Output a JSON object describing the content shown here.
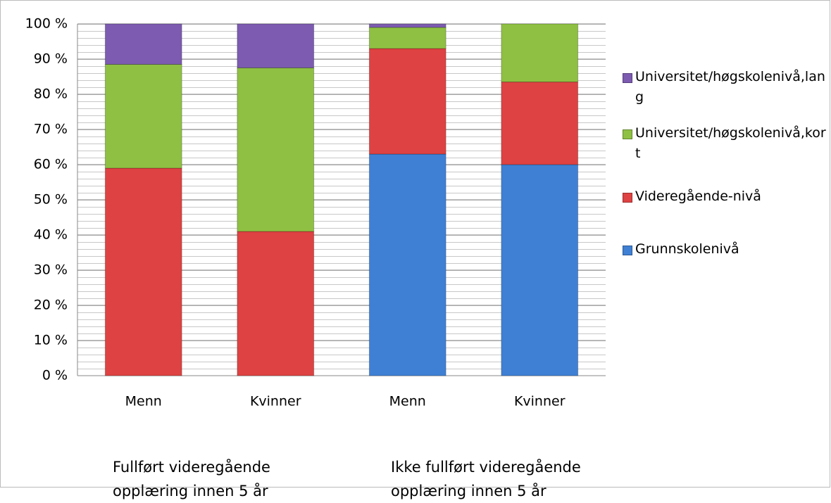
{
  "chart_data": {
    "type": "stacked_bar",
    "categories": [
      "Menn",
      "Kvinner",
      "Menn",
      "Kvinner"
    ],
    "groups": [
      "Fullført videregående opplæring innen 5 år",
      "Ikke fullført videregående opplæring innen 5 år"
    ],
    "series": [
      {
        "name": "Grunnskolenivå",
        "color": "#3f80d4",
        "values": [
          0,
          0,
          63,
          60
        ]
      },
      {
        "name": "Videregående-nivå",
        "color": "#de4242",
        "values": [
          59,
          41,
          30,
          23.5
        ]
      },
      {
        "name": "Universitet/høgskolenivå,kort",
        "color": "#8fc043",
        "values": [
          29.5,
          46.5,
          6,
          16.5
        ]
      },
      {
        "name": "Universitet/høgskolenivå,lang",
        "color": "#7c5bb0",
        "values": [
          11.5,
          12.5,
          1,
          0
        ]
      }
    ],
    "ylim": [
      0,
      100
    ],
    "yticks": [
      {
        "value": 0,
        "label": "0 %"
      },
      {
        "value": 10,
        "label": "10 %"
      },
      {
        "value": 20,
        "label": "20 %"
      },
      {
        "value": 30,
        "label": "30 %"
      },
      {
        "value": 40,
        "label": "40 %"
      },
      {
        "value": 50,
        "label": "50 %"
      },
      {
        "value": 60,
        "label": "60 %"
      },
      {
        "value": 70,
        "label": "70 %"
      },
      {
        "value": 80,
        "label": "80 %"
      },
      {
        "value": 90,
        "label": "90 %"
      },
      {
        "value": 100,
        "label": "100 %"
      }
    ],
    "grid": true,
    "legend": "right"
  }
}
